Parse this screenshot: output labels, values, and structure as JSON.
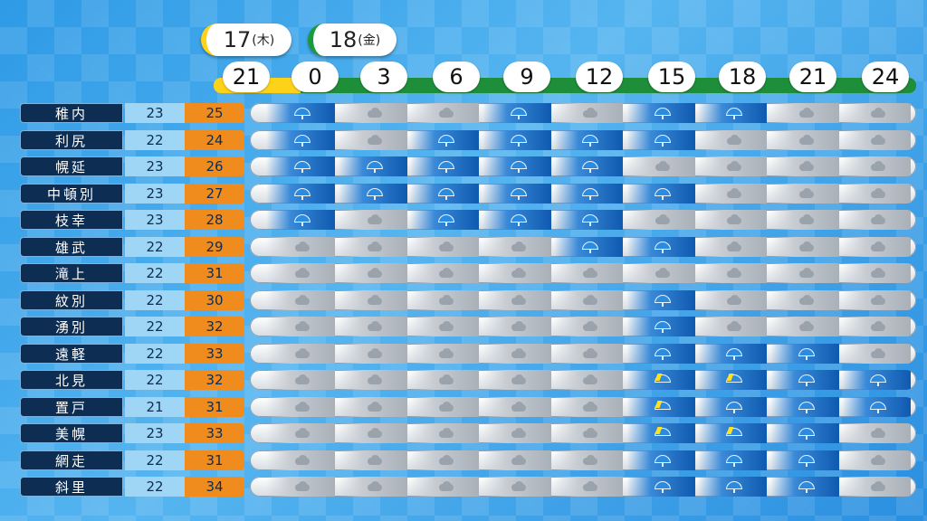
{
  "dates": [
    {
      "day": "17",
      "weekday": "(木)"
    },
    {
      "day": "18",
      "weekday": "(金)"
    }
  ],
  "hours": [
    "21",
    "0",
    "3",
    "6",
    "9",
    "12",
    "15",
    "18",
    "21",
    "24"
  ],
  "colors": {
    "thursday_accent": "#ffd21a",
    "friday_accent": "#1e8e3a",
    "name_bg": "#0d2d52",
    "min_bg": "#9fd6f6",
    "max_bg": "#f08c1e",
    "rain": "#0f5ab0",
    "cloud": "#a9b0b8"
  },
  "rows": [
    {
      "name": "稚内",
      "min": "23",
      "max": "25",
      "w": [
        "rain",
        "cloud",
        "cloud",
        "rain",
        "cloud",
        "rain",
        "rain",
        "cloud",
        "cloud"
      ]
    },
    {
      "name": "利尻",
      "min": "22",
      "max": "24",
      "w": [
        "rain",
        "cloud",
        "rain",
        "rain",
        "rain",
        "rain",
        "cloud",
        "cloud",
        "cloud"
      ]
    },
    {
      "name": "幌延",
      "min": "23",
      "max": "26",
      "w": [
        "rain",
        "rain",
        "rain",
        "rain",
        "rain",
        "cloud",
        "cloud",
        "cloud",
        "cloud"
      ]
    },
    {
      "name": "中頓別",
      "min": "23",
      "max": "27",
      "w": [
        "rain",
        "rain",
        "rain",
        "rain",
        "rain",
        "rain",
        "cloud",
        "cloud",
        "cloud"
      ]
    },
    {
      "name": "枝幸",
      "min": "23",
      "max": "28",
      "w": [
        "rain",
        "cloud",
        "rain",
        "rain",
        "rain",
        "cloud",
        "cloud",
        "cloud",
        "cloud"
      ]
    },
    {
      "name": "雄武",
      "min": "22",
      "max": "29",
      "w": [
        "cloud",
        "cloud",
        "cloud",
        "cloud",
        "rain",
        "rain",
        "cloud",
        "cloud",
        "cloud"
      ]
    },
    {
      "name": "滝上",
      "min": "22",
      "max": "31",
      "w": [
        "cloud",
        "cloud",
        "cloud",
        "cloud",
        "cloud",
        "cloud",
        "cloud",
        "cloud",
        "cloud"
      ]
    },
    {
      "name": "紋別",
      "min": "22",
      "max": "30",
      "w": [
        "cloud",
        "cloud",
        "cloud",
        "cloud",
        "cloud",
        "rain",
        "cloud",
        "cloud",
        "cloud"
      ]
    },
    {
      "name": "湧別",
      "min": "22",
      "max": "32",
      "w": [
        "cloud",
        "cloud",
        "cloud",
        "cloud",
        "cloud",
        "rain",
        "cloud",
        "cloud",
        "cloud"
      ]
    },
    {
      "name": "遠軽",
      "min": "22",
      "max": "33",
      "w": [
        "cloud",
        "cloud",
        "cloud",
        "cloud",
        "cloud",
        "rain",
        "rain",
        "rain",
        "cloud"
      ]
    },
    {
      "name": "北見",
      "min": "22",
      "max": "32",
      "w": [
        "cloud",
        "cloud",
        "cloud",
        "cloud",
        "cloud",
        "thunder",
        "thunder",
        "rain",
        "rain"
      ]
    },
    {
      "name": "置戸",
      "min": "21",
      "max": "31",
      "w": [
        "cloud",
        "cloud",
        "cloud",
        "cloud",
        "cloud",
        "thunder",
        "rain",
        "rain",
        "rain"
      ]
    },
    {
      "name": "美幌",
      "min": "23",
      "max": "33",
      "w": [
        "cloud",
        "cloud",
        "cloud",
        "cloud",
        "cloud",
        "thunder",
        "thunder",
        "rain",
        "cloud"
      ]
    },
    {
      "name": "網走",
      "min": "22",
      "max": "31",
      "w": [
        "cloud",
        "cloud",
        "cloud",
        "cloud",
        "cloud",
        "rain",
        "rain",
        "rain",
        "cloud"
      ]
    },
    {
      "name": "斜里",
      "min": "22",
      "max": "34",
      "w": [
        "cloud",
        "cloud",
        "cloud",
        "cloud",
        "cloud",
        "rain",
        "rain",
        "rain",
        "cloud"
      ]
    }
  ]
}
